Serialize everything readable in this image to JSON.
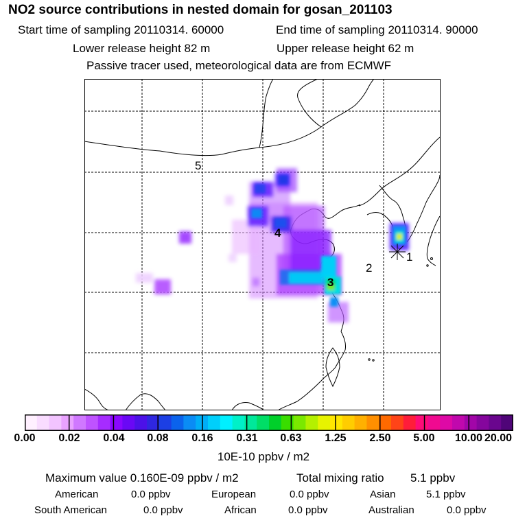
{
  "title": "NO2 source contributions in nested domain for gosan_201103",
  "sampling": {
    "start": "Start time of sampling 20110314. 60000",
    "end": "End time of sampling 20110314. 90000"
  },
  "release": {
    "lower": "Lower release height   82 m",
    "upper": "Upper release height   62 m"
  },
  "note": "Passive tracer used, meteorological data are from ECMWF",
  "colorbar": {
    "unit": "10E-10 ppbv / m2",
    "ticks": [
      "0.00",
      "0.02",
      "0.04",
      "0.08",
      "0.16",
      "0.31",
      "0.63",
      "1.25",
      "2.50",
      "5.00",
      "10.00",
      "20.00"
    ],
    "colors": [
      "#fff0ff",
      "#f9dcff",
      "#f2c4ff",
      "#e9a2ff",
      "#d078ff",
      "#bf53ff",
      "#a62cff",
      "#8a07ff",
      "#6a08f5",
      "#4c11e8",
      "#2f27e0",
      "#1c3fe4",
      "#0b63ec",
      "#0a8cf5",
      "#00aef7",
      "#00cffb",
      "#00f0ff",
      "#00f0c8",
      "#00e89a",
      "#00de66",
      "#00d02a",
      "#39dd00",
      "#7ae800",
      "#b4f000",
      "#e7f300",
      "#ffe700",
      "#ffcd00",
      "#ffb000",
      "#ff8f00",
      "#ff6a00",
      "#ff4418",
      "#ff1d3a",
      "#ff0c78",
      "#f00a90",
      "#de09a6",
      "#c108ad",
      "#a206a8",
      "#85069d",
      "#6a068e",
      "#4f0578"
    ]
  },
  "map": {
    "region_labels": [
      "5",
      "4",
      "3",
      "2",
      "1"
    ]
  },
  "stats": {
    "max": "Maximum value  0.160E-09 ppbv / m2",
    "total_label": "Total mixing ratio",
    "total_value": "5.1 ppbv",
    "american": "American",
    "american_value": "0.0 ppbv",
    "european": "European",
    "european_value": "0.0 ppbv",
    "asian": "Asian",
    "asian_value": "5.1 ppbv",
    "south_american": "South American",
    "south_american_value": "0.0 ppbv",
    "african": "African",
    "african_value": "0.0 ppbv",
    "australian": "Australian",
    "australian_value": "0.0 ppbv"
  },
  "chart_data": {
    "type": "heatmap",
    "title": "NO2 source contributions in nested domain for gosan_201103",
    "color_scale_unit": "10E-10 ppbv / m2",
    "color_scale_ticks": [
      0.0,
      0.02,
      0.04,
      0.08,
      0.16,
      0.31,
      0.63,
      1.25,
      2.5,
      5.0,
      10.0,
      20.0
    ],
    "maximum_value": "0.160E-09 ppbv / m2",
    "total_mixing_ratio_ppbv": 5.1,
    "contributions_ppbv": {
      "American": 0.0,
      "European": 0.0,
      "Asian": 5.1,
      "South American": 0.0,
      "African": 0.0,
      "Australian": 0.0
    },
    "grid": "dashed"
  }
}
